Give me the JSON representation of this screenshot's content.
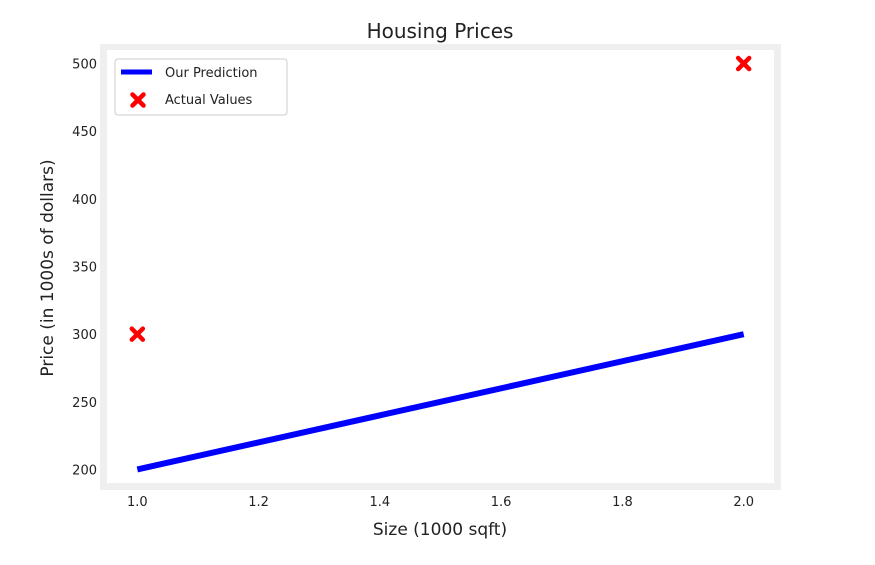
{
  "chart_data": {
    "type": "line",
    "title": "Housing Prices",
    "xlabel": "Size (1000 sqft)",
    "ylabel": "Price (in 1000s of dollars)",
    "xlim": [
      0.95,
      2.05
    ],
    "ylim": [
      190,
      510
    ],
    "x_ticks": [
      1.0,
      1.2,
      1.4,
      1.6,
      1.8,
      2.0
    ],
    "x_tick_labels": [
      "1.0",
      "1.2",
      "1.4",
      "1.6",
      "1.8",
      "2.0"
    ],
    "y_ticks": [
      200,
      250,
      300,
      350,
      400,
      450,
      500
    ],
    "y_tick_labels": [
      "200",
      "250",
      "300",
      "350",
      "400",
      "450",
      "500"
    ],
    "grid": false,
    "legend_position": "top-left",
    "series": [
      {
        "name": "Our Prediction",
        "kind": "line",
        "color": "#0000ff",
        "x": [
          1.0,
          2.0
        ],
        "y": [
          200,
          300
        ]
      },
      {
        "name": "Actual Values",
        "kind": "scatter",
        "marker": "x",
        "color": "#ff0000",
        "x": [
          1.0,
          2.0
        ],
        "y": [
          300,
          500
        ]
      }
    ]
  }
}
